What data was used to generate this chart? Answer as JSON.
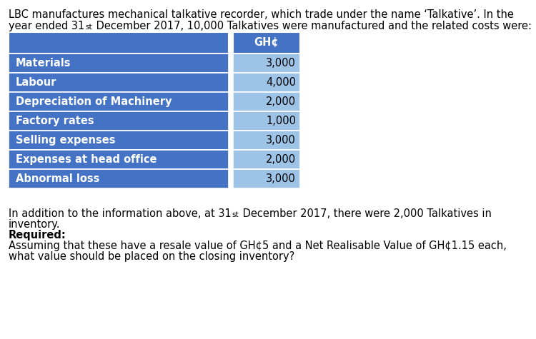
{
  "intro_line1": "LBC manufactures mechanical talkative recorder, which trade under the name ‘Talkative’. In the",
  "intro_line2_pre": "year ended 31",
  "intro_line2_sup": "st",
  "intro_line2_post": " December 2017, 10,000 Talkatives were manufactured and the related costs were:",
  "table_header": "GH¢",
  "table_rows": [
    [
      "Materials",
      "3,000"
    ],
    [
      "Labour",
      "4,000"
    ],
    [
      "Depreciation of Machinery",
      "2,000"
    ],
    [
      "Factory rates",
      "1,000"
    ],
    [
      "Selling expenses",
      "3,000"
    ],
    [
      "Expenses at head office",
      "2,000"
    ],
    [
      "Abnormal loss",
      "3,000"
    ]
  ],
  "label_col_bg": "#4472C4",
  "value_col_bg": "#9DC3E6",
  "header_label_bg": "#4472C4",
  "header_value_bg": "#4472C4",
  "label_text_color": "#FFFFFF",
  "value_text_color": "#000000",
  "header_text_color": "#FFFFFF",
  "divider_color": "#FFFFFF",
  "bg_color": "#FFFFFF",
  "footer_line1_pre": "In addition to the information above, at 31",
  "footer_line1_sup": "st",
  "footer_line1_post": " December 2017, there were 2,000 Talkatives in",
  "footer_line2": "inventory.",
  "footer_line3": "Required:",
  "footer_line4": "Assuming that these have a resale value of GH¢5 and a Net Realisable Value of GH¢1.15 each,",
  "footer_line5": "what value should be placed on the closing inventory?",
  "font_size": 10.5
}
